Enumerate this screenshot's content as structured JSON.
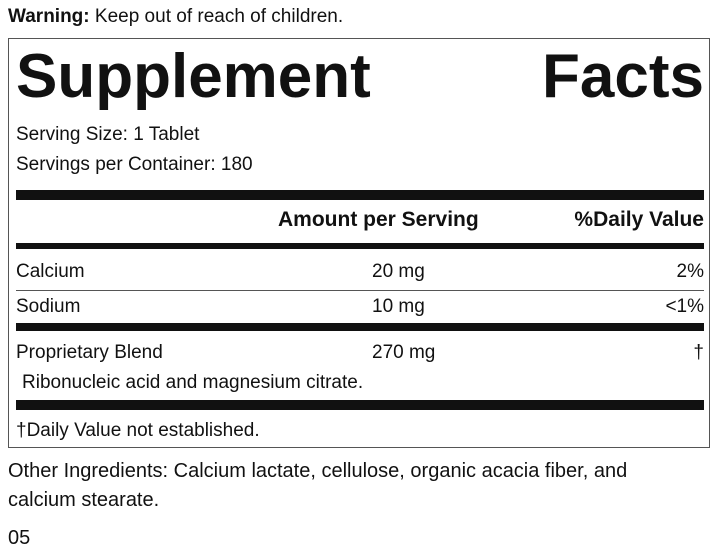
{
  "warning": {
    "label": "Warning:",
    "text": "Keep out of reach of children."
  },
  "panel": {
    "title": "Supplement Facts",
    "serving_size": "Serving Size: 1 Tablet",
    "servings_per_container": "Servings per Container: 180",
    "columns": [
      "Amount per Serving",
      "%Daily Value"
    ],
    "rows": [
      {
        "name": "Calcium",
        "amount": "20 mg",
        "daily_value": "2%"
      },
      {
        "name": "Sodium",
        "amount": "10 mg",
        "daily_value": "<1%"
      },
      {
        "name": "Proprietary Blend",
        "amount": "270 mg",
        "daily_value": "†",
        "detail": "Ribonucleic acid and magnesium citrate."
      }
    ],
    "footnote": "†Daily Value not established."
  },
  "other_ingredients": "Other Ingredients: Calcium lactate, cellulose, organic acacia fiber, and calcium stearate.",
  "code": "05"
}
